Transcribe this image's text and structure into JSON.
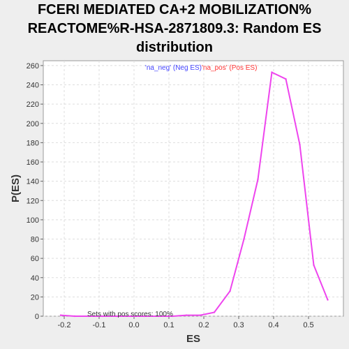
{
  "chart_data": {
    "type": "line",
    "title_lines": [
      "FCERI MEDIATED CA+2 MOBILIZATION%",
      "REACTOME%R-HSA-2871809.3: Random ES",
      "distribution"
    ],
    "xlabel": "ES",
    "ylabel": "P(ES)",
    "xlim": [
      -0.26,
      0.6
    ],
    "ylim": [
      0,
      265
    ],
    "xticks": [
      -0.2,
      -0.1,
      0.0,
      0.1,
      0.2,
      0.3,
      0.4,
      0.5
    ],
    "xtick_labels": [
      "-0.2",
      "-0.1",
      "0.0",
      "0.1",
      "0.2",
      "0.3",
      "0.4",
      "0.5"
    ],
    "yticks": [
      0,
      20,
      40,
      60,
      80,
      100,
      120,
      140,
      160,
      180,
      200,
      220,
      240,
      260
    ],
    "ytick_labels": [
      "0",
      "20",
      "40",
      "60",
      "80",
      "100",
      "120",
      "140",
      "160",
      "180",
      "200",
      "220",
      "240",
      "260"
    ],
    "grid": true,
    "legend": {
      "placement": "top-center",
      "entries": [
        {
          "label": "'na_neg' (Neg ES)",
          "color": "#4444ff"
        },
        {
          "label": "'na_pos' (Pos ES)",
          "color": "#ff3333"
        }
      ]
    },
    "annotation": "Sets with pos scores: 100%",
    "series": [
      {
        "color": "#ee44ee",
        "x": [
          -0.21,
          -0.17,
          -0.13,
          -0.09,
          -0.05,
          -0.01,
          0.03,
          0.07,
          0.11,
          0.15,
          0.19,
          0.23,
          0.275,
          0.315,
          0.355,
          0.395,
          0.435,
          0.475,
          0.515,
          0.555
        ],
        "y": [
          1,
          0,
          0,
          0,
          0,
          0,
          0,
          0,
          0,
          1,
          1,
          4,
          26,
          80,
          142,
          253,
          246,
          178,
          53,
          17
        ]
      }
    ]
  }
}
